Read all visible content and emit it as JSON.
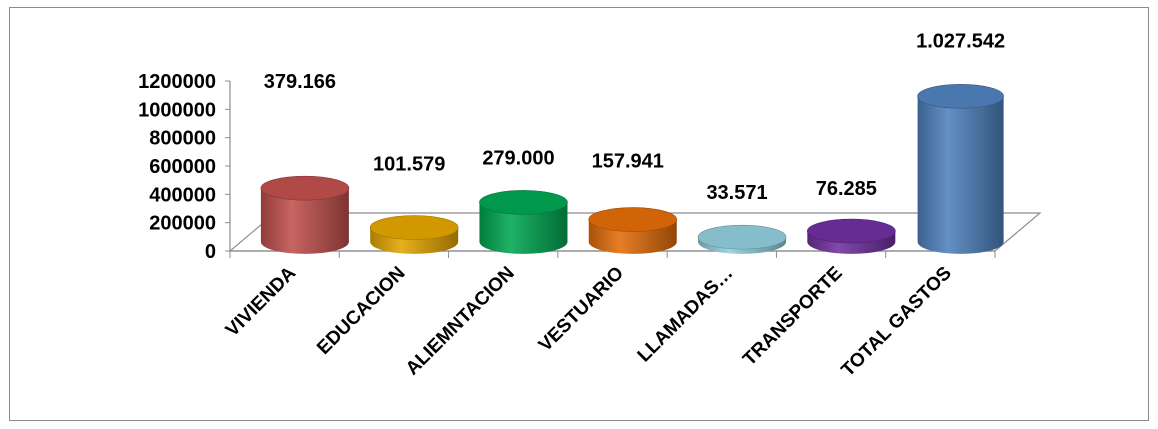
{
  "chart_data": {
    "type": "bar",
    "style": "3d-cylinder",
    "categories": [
      "VIVIENDA",
      "EDUCACION",
      "ALIEMNTACION",
      "VESTUARIO",
      "LLAMADAS…",
      "TRANSPORTE",
      "TOTAL GASTOS"
    ],
    "values": [
      379166,
      101579,
      279000,
      157941,
      33571,
      76285,
      1027542
    ],
    "data_labels": [
      "379.166",
      "101.579",
      "279.000",
      "157.941",
      "33.571",
      "76.285",
      "1.027.542"
    ],
    "colors": [
      "#c0504d",
      "#e3a500",
      "#00a651",
      "#e36c09",
      "#92cddc",
      "#7030a0",
      "#4f81bd"
    ],
    "ylim": [
      0,
      1200000
    ],
    "yticks": [
      "0",
      "200000",
      "400000",
      "600000",
      "800000",
      "1000000",
      "1200000"
    ],
    "grid": false,
    "legend": "none",
    "title": "",
    "xlabel": "",
    "ylabel": ""
  }
}
